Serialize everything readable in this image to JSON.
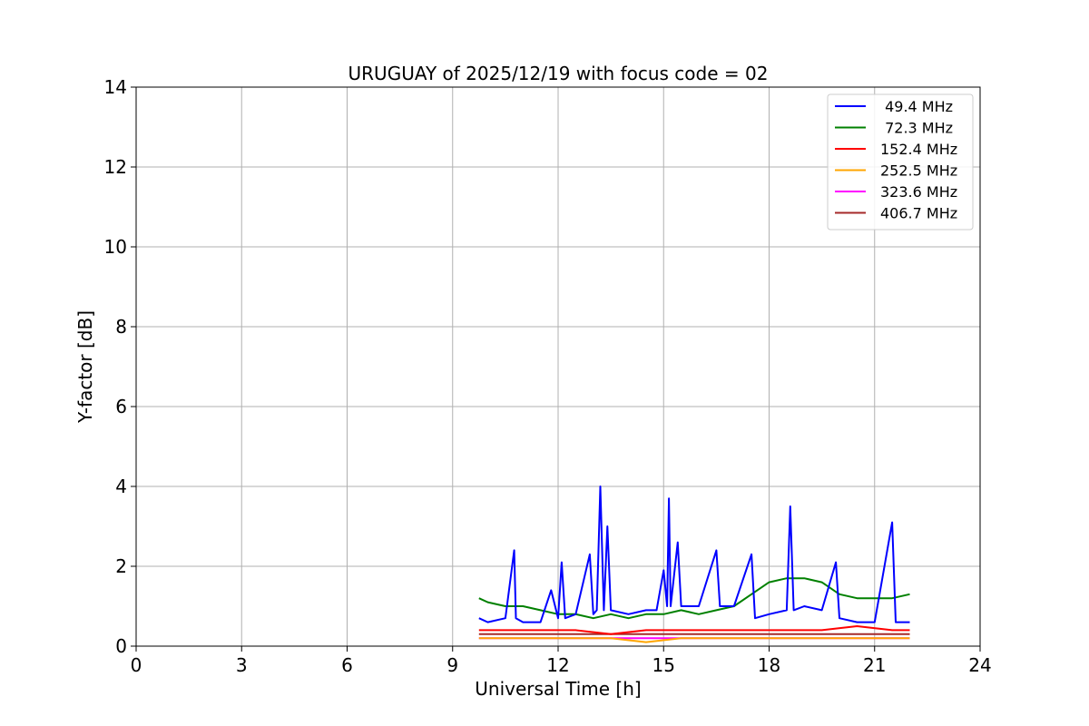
{
  "chart_data": {
    "type": "line",
    "title": "URUGUAY of 2025/12/19 with focus code = 02",
    "xlabel": "Universal Time [h]",
    "ylabel": "Y-factor [dB]",
    "xlim": [
      0,
      24
    ],
    "ylim": [
      0,
      14
    ],
    "xticks": [
      0,
      3,
      6,
      9,
      12,
      15,
      18,
      21,
      24
    ],
    "yticks": [
      0,
      2,
      4,
      6,
      8,
      10,
      12,
      14
    ],
    "grid": true,
    "legend_position": "top-right",
    "series": [
      {
        "name": " 49.4 MHz",
        "color": "#0000ff",
        "x": [
          9.75,
          10.0,
          10.5,
          10.75,
          10.8,
          11.0,
          11.5,
          11.8,
          12.0,
          12.1,
          12.2,
          12.5,
          12.9,
          13.0,
          13.1,
          13.2,
          13.3,
          13.4,
          13.5,
          14.0,
          14.5,
          14.8,
          15.0,
          15.1,
          15.15,
          15.2,
          15.4,
          15.5,
          16.0,
          16.5,
          16.6,
          17.0,
          17.5,
          17.6,
          18.0,
          18.5,
          18.6,
          18.7,
          19.0,
          19.5,
          19.9,
          20.0,
          20.5,
          21.0,
          21.5,
          21.6,
          22.0
        ],
        "y": [
          0.7,
          0.6,
          0.7,
          2.4,
          0.7,
          0.6,
          0.6,
          1.4,
          0.7,
          2.1,
          0.7,
          0.8,
          2.3,
          0.8,
          0.9,
          4.0,
          0.9,
          3.0,
          0.9,
          0.8,
          0.9,
          0.9,
          1.9,
          1.0,
          3.7,
          1.0,
          2.6,
          1.0,
          1.0,
          2.4,
          1.0,
          1.0,
          2.3,
          0.7,
          0.8,
          0.9,
          3.5,
          0.9,
          1.0,
          0.9,
          2.1,
          0.7,
          0.6,
          0.6,
          3.1,
          0.6,
          0.6
        ]
      },
      {
        "name": " 72.3 MHz",
        "color": "#008000",
        "x": [
          9.75,
          10.0,
          10.5,
          11.0,
          11.5,
          12.0,
          12.5,
          13.0,
          13.5,
          14.0,
          14.5,
          15.0,
          15.5,
          16.0,
          16.5,
          17.0,
          17.5,
          18.0,
          18.5,
          19.0,
          19.5,
          20.0,
          20.5,
          21.0,
          21.5,
          22.0
        ],
        "y": [
          1.2,
          1.1,
          1.0,
          1.0,
          0.9,
          0.8,
          0.8,
          0.7,
          0.8,
          0.7,
          0.8,
          0.8,
          0.9,
          0.8,
          0.9,
          1.0,
          1.3,
          1.6,
          1.7,
          1.7,
          1.6,
          1.3,
          1.2,
          1.2,
          1.2,
          1.3
        ]
      },
      {
        "name": "152.4 MHz",
        "color": "#ff0000",
        "x": [
          9.75,
          10.5,
          11.5,
          12.5,
          13.5,
          14.5,
          15.5,
          16.5,
          17.5,
          18.5,
          19.5,
          20.5,
          21.5,
          22.0
        ],
        "y": [
          0.4,
          0.4,
          0.4,
          0.4,
          0.3,
          0.4,
          0.4,
          0.4,
          0.4,
          0.4,
          0.4,
          0.5,
          0.4,
          0.4
        ]
      },
      {
        "name": "252.5 MHz",
        "color": "#ffa500",
        "x": [
          9.75,
          10.5,
          11.5,
          12.5,
          13.5,
          14.5,
          15.5,
          16.5,
          17.5,
          18.5,
          19.5,
          20.5,
          21.5,
          22.0
        ],
        "y": [
          0.2,
          0.2,
          0.2,
          0.2,
          0.2,
          0.1,
          0.2,
          0.2,
          0.2,
          0.2,
          0.2,
          0.2,
          0.2,
          0.2
        ]
      },
      {
        "name": "323.6 MHz",
        "color": "#ff00ff",
        "x": [
          9.75,
          10.5,
          11.5,
          12.5,
          13.5,
          14.5,
          15.5,
          16.5,
          17.5,
          18.5,
          19.5,
          20.5,
          21.5,
          22.0
        ],
        "y": [
          0.2,
          0.2,
          0.2,
          0.2,
          0.2,
          0.2,
          0.2,
          0.2,
          0.2,
          0.2,
          0.2,
          0.2,
          0.2,
          0.2
        ]
      },
      {
        "name": "406.7 MHz",
        "color": "#a52a2a",
        "x": [
          9.75,
          10.5,
          11.5,
          12.5,
          13.5,
          14.5,
          15.5,
          16.5,
          17.5,
          18.5,
          19.5,
          20.5,
          21.5,
          22.0
        ],
        "y": [
          0.3,
          0.3,
          0.3,
          0.3,
          0.3,
          0.3,
          0.3,
          0.3,
          0.3,
          0.3,
          0.3,
          0.3,
          0.3,
          0.3
        ]
      }
    ]
  }
}
